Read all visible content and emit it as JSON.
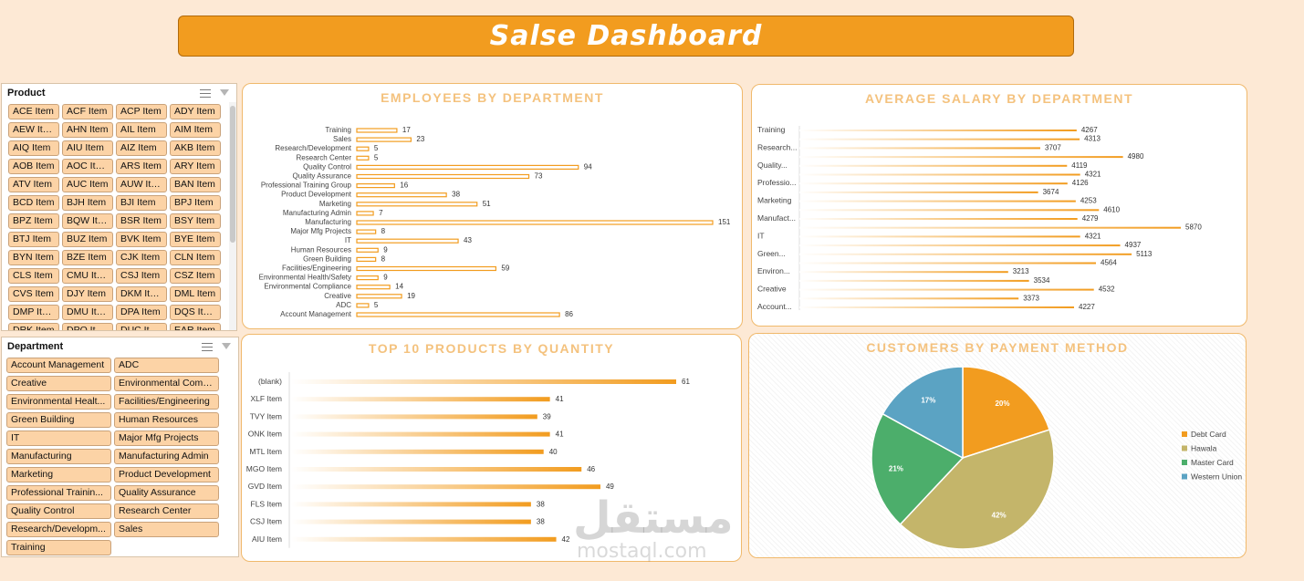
{
  "dashboard_title": "Salse Dashboard",
  "slicers": {
    "product": {
      "title": "Product",
      "items": [
        "ACE Item",
        "ACF Item",
        "ACP Item",
        "ADY Item",
        "AEW Item",
        "AHN Item",
        "AIL Item",
        "AIM Item",
        "AIQ Item",
        "AIU Item",
        "AIZ Item",
        "AKB Item",
        "AOB Item",
        "AOC Item",
        "ARS Item",
        "ARY Item",
        "ATV Item",
        "AUC Item",
        "AUW Item",
        "BAN Item",
        "BCD Item",
        "BJH Item",
        "BJI Item",
        "BPJ Item",
        "BPZ Item",
        "BQW Item",
        "BSR Item",
        "BSY Item",
        "BTJ Item",
        "BUZ Item",
        "BVK Item",
        "BYE Item",
        "BYN Item",
        "BZE Item",
        "CJK Item",
        "CLN Item",
        "CLS Item",
        "CMU Item",
        "CSJ Item",
        "CSZ Item",
        "CVS Item",
        "DJY Item",
        "DKM Item",
        "DML Item",
        "DMP Item",
        "DMU Item",
        "DPA Item",
        "DQS Item",
        "DRK Item",
        "DPQ Item",
        "DUC Item",
        "EAR Item"
      ]
    },
    "department": {
      "title": "Department",
      "items": [
        "Account Management",
        "ADC",
        "Creative",
        "Environmental Comp...",
        "Environmental Healt...",
        "Facilities/Engineering",
        "Green Building",
        "Human Resources",
        "IT",
        "Major Mfg Projects",
        "Manufacturing",
        "Manufacturing Admin",
        "Marketing",
        "Product Development",
        "Professional Trainin...",
        "Quality Assurance",
        "Quality Control",
        "Research Center",
        "Research/Developm...",
        "Sales",
        "Training"
      ]
    }
  },
  "charts": {
    "employees": {
      "title": "EMPLOYEES BY DEPARTMENT",
      "chart_data": {
        "type": "bar",
        "orientation": "horizontal",
        "categories": [
          "Training",
          "Sales",
          "Research/Development",
          "Research Center",
          "Quality Control",
          "Quality Assurance",
          "Professional Training Group",
          "Product Development",
          "Marketing",
          "Manufacturing Admin",
          "Manufacturing",
          "Major Mfg Projects",
          "IT",
          "Human Resources",
          "Green Building",
          "Facilities/Engineering",
          "Environmental Health/Safety",
          "Environmental Compliance",
          "Creative",
          "ADC",
          "Account Management"
        ],
        "values": [
          17,
          23,
          5,
          5,
          94,
          73,
          16,
          38,
          51,
          7,
          151,
          8,
          43,
          9,
          8,
          59,
          9,
          14,
          19,
          5,
          86
        ],
        "xlim": [
          0,
          151
        ],
        "color": "#f29c1f"
      }
    },
    "salary": {
      "title": "AVERAGE SALARY BY DEPARTMENT",
      "chart_data": {
        "type": "bar",
        "orientation": "horizontal",
        "row_labels": [
          "Training",
          "",
          "Research...",
          "",
          "Quality...",
          "",
          "Professio...",
          "",
          "Marketing",
          "",
          "Manufact...",
          "",
          "IT",
          "",
          "Green...",
          "",
          "Environ...",
          "",
          "Creative",
          "",
          "Account..."
        ],
        "values": [
          4267,
          4313,
          3707,
          4980,
          4119,
          4321,
          4126,
          3674,
          4253,
          4610,
          4279,
          5870,
          4321,
          4937,
          5113,
          4564,
          3213,
          3534,
          4532,
          3373,
          4227
        ],
        "xlim": [
          0,
          5870
        ],
        "color": "#f29c1f"
      }
    },
    "top_products": {
      "title": "TOP 10 PRODUCTS BY QUANTITY",
      "chart_data": {
        "type": "bar",
        "orientation": "horizontal",
        "categories": [
          "(blank)",
          "XLF Item",
          "TVY Item",
          "ONK Item",
          "MTL Item",
          "MGO Item",
          "GVD Item",
          "FLS Item",
          "CSJ Item",
          "AIU Item"
        ],
        "values": [
          61,
          41,
          39,
          41,
          40,
          46,
          49,
          38,
          38,
          42
        ],
        "xlim": [
          0,
          61
        ],
        "color": "#f29c1f"
      }
    },
    "payment": {
      "title": "CUSTOMERS BY PAYMENT METHOD",
      "chart_data": {
        "type": "pie",
        "labels": [
          "Debt Card",
          "Hawala",
          "Master Card",
          "Western Union"
        ],
        "values": [
          20,
          42,
          21,
          17
        ],
        "data_labels": [
          "20%",
          "42%",
          "21%",
          "17%"
        ],
        "colors": [
          "#f29c1f",
          "#c4b56a",
          "#4cae6b",
          "#5ba3c3"
        ],
        "legend": "right"
      }
    }
  },
  "watermark": {
    "arabic": "مستقل",
    "latin": "mostaql.com"
  }
}
